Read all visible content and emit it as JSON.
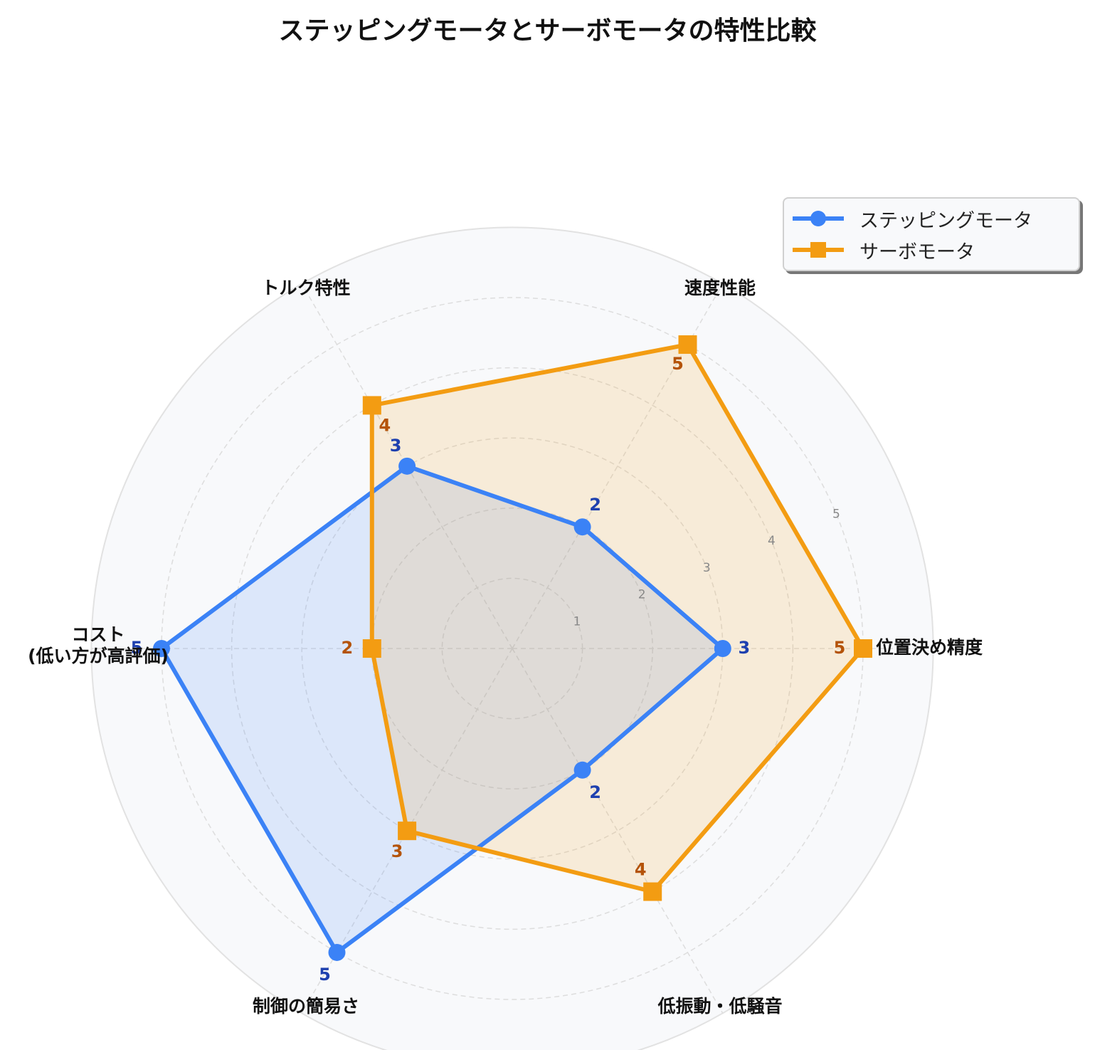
{
  "chart_data": {
    "type": "radar",
    "title": "ステッピングモータとサーボモータの特性比較",
    "categories": [
      "位置決め精度",
      "速度性能",
      "トルク特性",
      "コスト\n(低い方が高評価)",
      "制御の簡易さ",
      "低振動・低騒音"
    ],
    "r_ticks": [
      "1",
      "2",
      "3",
      "4",
      "5"
    ],
    "r_max": 6,
    "grid": true,
    "legend_position": "top-right",
    "series": [
      {
        "name": "ステッピングモータ",
        "values": [
          3,
          2,
          3,
          5,
          5,
          2
        ],
        "color": "#3b82f6",
        "label_color": "#1e40af",
        "marker": "circle"
      },
      {
        "name": "サーボモータ",
        "values": [
          5,
          5,
          4,
          2,
          3,
          4
        ],
        "color": "#f39c12",
        "label_color": "#b45309",
        "marker": "square"
      }
    ]
  }
}
